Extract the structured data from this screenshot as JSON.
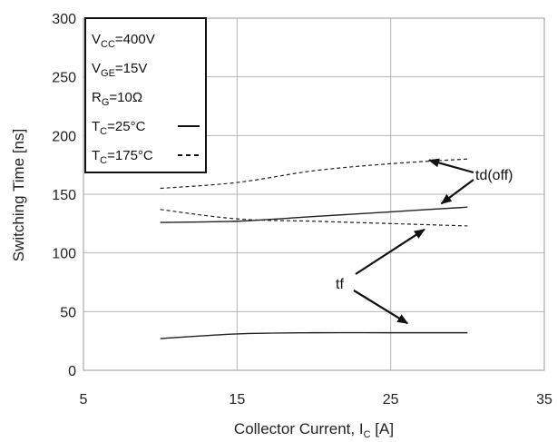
{
  "chart_data": {
    "type": "line",
    "xlabel": "Collector Current, I",
    "xlabel_sub": "C",
    "xlabel_unit": " [A]",
    "ylabel": "Switching Time [ns]",
    "xlim": [
      5,
      35
    ],
    "ylim": [
      0,
      300
    ],
    "xticks": [
      "5",
      "15",
      "25",
      "35"
    ],
    "yticks": [
      "0",
      "50",
      "100",
      "150",
      "200",
      "250",
      "300"
    ],
    "grid": true,
    "legend_position": "top-left",
    "legend": {
      "conditions": [
        {
          "main": "V",
          "sub": "CC",
          "rest": "=400V"
        },
        {
          "main": "V",
          "sub": "GE",
          "rest": "=15V"
        },
        {
          "main": "R",
          "sub": "G",
          "rest": "=10Ω"
        }
      ],
      "entries": [
        {
          "main": "T",
          "sub": "C",
          "rest": "=25°C",
          "style": "solid"
        },
        {
          "main": "T",
          "sub": "C",
          "rest": "=175°C",
          "style": "dashed"
        }
      ]
    },
    "series": [
      {
        "label": "td(off) 25°C",
        "style": "solid",
        "x": [
          10,
          15,
          20,
          25,
          30
        ],
        "y": [
          126,
          127,
          131,
          135,
          139
        ]
      },
      {
        "label": "td(off) 175°C",
        "style": "dashed",
        "x": [
          10,
          15,
          20,
          25,
          30
        ],
        "y": [
          155,
          160,
          170,
          176,
          180
        ]
      },
      {
        "label": "tf 25°C",
        "style": "solid",
        "x": [
          10,
          15,
          20,
          25,
          30
        ],
        "y": [
          27,
          31,
          32,
          32,
          32
        ]
      },
      {
        "label": "tf 175°C",
        "style": "dashed",
        "x": [
          10,
          15,
          20,
          25,
          30
        ],
        "y": [
          137,
          129,
          127,
          125,
          123
        ]
      }
    ],
    "annotations": [
      {
        "text": "td(off)",
        "targets": [
          [
            27.5,
            179
          ],
          [
            28.3,
            142
          ]
        ]
      },
      {
        "text": "tf",
        "targets": [
          [
            27.2,
            120
          ],
          [
            26.1,
            40
          ]
        ]
      }
    ]
  }
}
